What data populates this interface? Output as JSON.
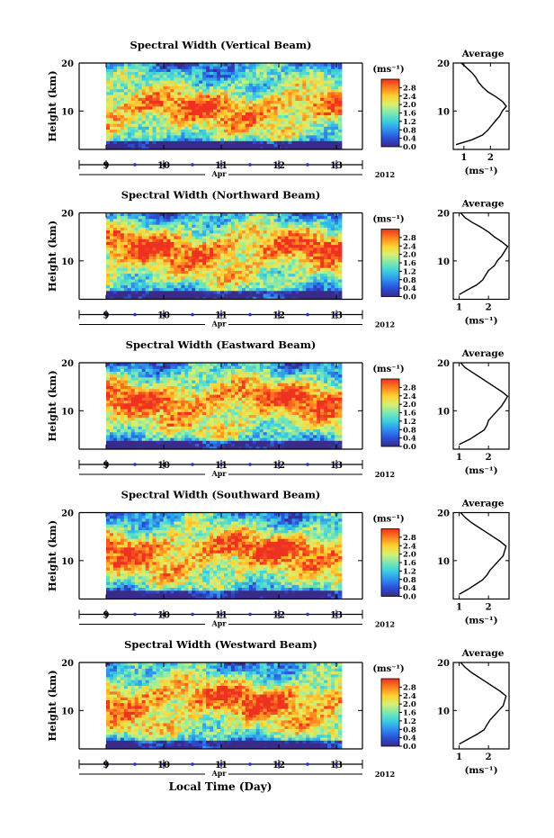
{
  "figure": {
    "xlabel": "Local Time (Day)",
    "month_label": "Apr",
    "year_label": "2012",
    "ylabel": "Height (km)",
    "colorbar_unit": "(ms⁻¹)",
    "average_title": "Average",
    "average_xlabel": "(ms⁻¹)",
    "colors": {
      "colormap": [
        "#3a2a8a",
        "#2a4fd8",
        "#2f8ff0",
        "#3ad0e0",
        "#7ee8b0",
        "#d8f070",
        "#ffd030",
        "#ff8020",
        "#ee3020"
      ]
    }
  },
  "chart_data": [
    {
      "type": "heatmap",
      "title": "Spectral Width (Vertical Beam)",
      "xlabel": "Local Time (Day)",
      "ylabel": "Height (km)",
      "x_ticks": [
        "9",
        "10",
        "11",
        "12",
        "13"
      ],
      "y_ticks": [
        "10",
        "20"
      ],
      "ylim": [
        2,
        20
      ],
      "colorbar": {
        "unit": "(ms⁻¹)",
        "ticks": [
          "0.0",
          "0.4",
          "0.8",
          "1.2",
          "1.6",
          "2.0",
          "2.4",
          "2.8"
        ],
        "range": [
          0,
          3.2
        ]
      },
      "profile": {
        "title": "Average",
        "xlabel": "(ms⁻¹)",
        "x_ticks": [
          "1",
          "2"
        ],
        "xlim": [
          0.6,
          2.7
        ],
        "height_km": [
          3,
          4,
          5,
          6,
          7,
          8,
          9,
          10,
          11,
          12,
          13,
          14,
          15,
          16,
          17,
          18,
          19,
          20
        ],
        "value": [
          0.7,
          1.3,
          1.7,
          1.9,
          2.05,
          2.2,
          2.35,
          2.45,
          2.6,
          2.45,
          2.2,
          1.9,
          1.7,
          1.55,
          1.45,
          1.3,
          1.1,
          0.9
        ]
      }
    },
    {
      "type": "heatmap",
      "title": "Spectral Width (Northward Beam)",
      "xlabel": "Local Time (Day)",
      "ylabel": "Height (km)",
      "x_ticks": [
        "9",
        "10",
        "11",
        "12",
        "13"
      ],
      "y_ticks": [
        "10",
        "20"
      ],
      "ylim": [
        2,
        20
      ],
      "colorbar": {
        "unit": "(ms⁻¹)",
        "ticks": [
          "0.0",
          "0.4",
          "0.8",
          "1.2",
          "1.6",
          "2.0",
          "2.4",
          "2.8"
        ],
        "range": [
          0,
          3.2
        ]
      },
      "profile": {
        "title": "Average",
        "xlabel": "(ms⁻¹)",
        "x_ticks": [
          "1",
          "2"
        ],
        "xlim": [
          0.8,
          2.7
        ],
        "height_km": [
          3,
          4,
          5,
          6,
          7,
          8,
          9,
          10,
          11,
          12,
          13,
          14,
          15,
          16,
          17,
          18,
          19,
          20
        ],
        "value": [
          1.0,
          1.3,
          1.6,
          1.8,
          1.9,
          2.0,
          2.2,
          2.3,
          2.45,
          2.55,
          2.65,
          2.45,
          2.2,
          2.0,
          1.75,
          1.45,
          1.2,
          1.05
        ]
      }
    },
    {
      "type": "heatmap",
      "title": "Spectral Width (Eastward Beam)",
      "xlabel": "Local Time (Day)",
      "ylabel": "Height (km)",
      "x_ticks": [
        "9",
        "10",
        "11",
        "12",
        "13"
      ],
      "y_ticks": [
        "10",
        "20"
      ],
      "ylim": [
        2,
        20
      ],
      "colorbar": {
        "unit": "(ms⁻¹)",
        "ticks": [
          "0.0",
          "0.4",
          "0.8",
          "1.2",
          "1.6",
          "2.0",
          "2.4",
          "2.8"
        ],
        "range": [
          0,
          3.2
        ]
      },
      "profile": {
        "title": "Average",
        "xlabel": "(ms⁻¹)",
        "x_ticks": [
          "1",
          "2"
        ],
        "xlim": [
          0.8,
          2.7
        ],
        "height_km": [
          3,
          4,
          5,
          6,
          7,
          8,
          9,
          10,
          11,
          12,
          13,
          14,
          15,
          16,
          17,
          18,
          19,
          20
        ],
        "value": [
          1.0,
          1.35,
          1.6,
          1.85,
          1.95,
          2.0,
          2.15,
          2.3,
          2.45,
          2.55,
          2.65,
          2.45,
          2.2,
          1.95,
          1.7,
          1.45,
          1.2,
          1.05
        ]
      }
    },
    {
      "type": "heatmap",
      "title": "Spectral Width (Southward Beam)",
      "xlabel": "Local Time (Day)",
      "ylabel": "Height (km)",
      "x_ticks": [
        "9",
        "10",
        "11",
        "12",
        "13"
      ],
      "y_ticks": [
        "10",
        "20"
      ],
      "ylim": [
        2,
        20
      ],
      "colorbar": {
        "unit": "(ms⁻¹)",
        "ticks": [
          "0.0",
          "0.4",
          "0.8",
          "1.2",
          "1.6",
          "2.0",
          "2.4",
          "2.8"
        ],
        "range": [
          0,
          3.2
        ]
      },
      "profile": {
        "title": "Average",
        "xlabel": "(ms⁻¹)",
        "x_ticks": [
          "1",
          "2"
        ],
        "xlim": [
          0.8,
          2.7
        ],
        "height_km": [
          3,
          4,
          5,
          6,
          7,
          8,
          9,
          10,
          11,
          12,
          13,
          14,
          15,
          16,
          17,
          18,
          19,
          20
        ],
        "value": [
          1.0,
          1.3,
          1.55,
          1.8,
          1.95,
          2.05,
          2.2,
          2.35,
          2.5,
          2.55,
          2.6,
          2.4,
          2.15,
          1.9,
          1.65,
          1.4,
          1.2,
          1.05
        ]
      }
    },
    {
      "type": "heatmap",
      "title": "Spectral Width (Westward Beam)",
      "xlabel": "Local Time (Day)",
      "ylabel": "Height (km)",
      "x_ticks": [
        "9",
        "10",
        "11",
        "12",
        "13"
      ],
      "y_ticks": [
        "10",
        "20"
      ],
      "ylim": [
        2,
        20
      ],
      "colorbar": {
        "unit": "(ms⁻¹)",
        "ticks": [
          "0.0",
          "0.4",
          "0.8",
          "1.2",
          "1.6",
          "2.0",
          "2.4",
          "2.8"
        ],
        "range": [
          0,
          3.2
        ]
      },
      "profile": {
        "title": "Average",
        "xlabel": "(ms⁻¹)",
        "x_ticks": [
          "1",
          "2"
        ],
        "xlim": [
          0.8,
          2.7
        ],
        "height_km": [
          3,
          4,
          5,
          6,
          7,
          8,
          9,
          10,
          11,
          12,
          13,
          14,
          15,
          16,
          17,
          18,
          19,
          20
        ],
        "value": [
          1.0,
          1.3,
          1.6,
          1.85,
          1.95,
          2.05,
          2.2,
          2.35,
          2.5,
          2.55,
          2.6,
          2.4,
          2.15,
          1.9,
          1.65,
          1.4,
          1.2,
          1.05
        ]
      }
    }
  ]
}
